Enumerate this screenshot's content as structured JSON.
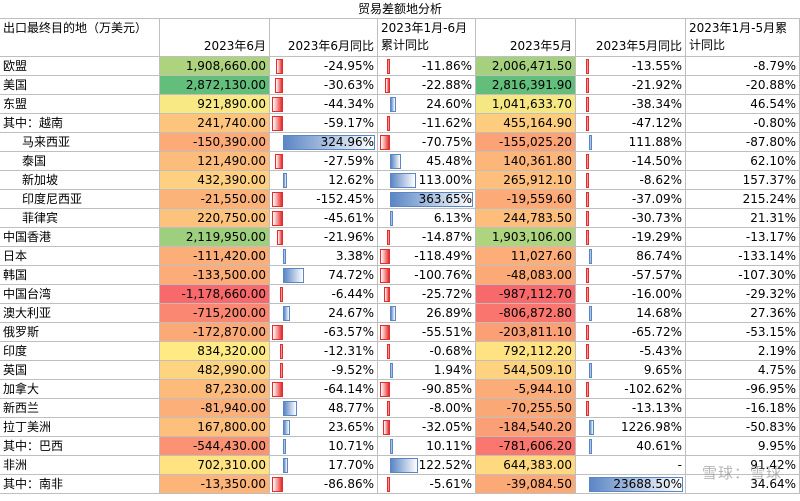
{
  "title": "贸易差额地分析",
  "headers": {
    "name": "出口最终目的地（万美元）",
    "jun": "2023年6月",
    "jun_yoy": "2023年6月同比",
    "h1_yoy": "2023年1月-6月累计同比",
    "may": "2023年5月",
    "may_yoy": "2023年5月同比",
    "ytd5_yoy": "2023年1月-5月累计同比"
  },
  "rows": [
    {
      "name": "欧盟",
      "indent": false,
      "jun": "1,908,660.00",
      "jun_n": 1908660,
      "jun_yoy": "-24.95%",
      "jun_yoy_n": -24.95,
      "h1_yoy": "-11.86%",
      "h1_yoy_n": -11.86,
      "may": "2,006,471.50",
      "may_n": 2006471.5,
      "may_yoy": "-13.55%",
      "may_yoy_n": -13.55,
      "ytd5_yoy": "-8.79%"
    },
    {
      "name": "美国",
      "indent": false,
      "jun": "2,872,130.00",
      "jun_n": 2872130,
      "jun_yoy": "-30.63%",
      "jun_yoy_n": -30.63,
      "h1_yoy": "-22.88%",
      "h1_yoy_n": -22.88,
      "may": "2,816,391.90",
      "may_n": 2816391.9,
      "may_yoy": "-21.92%",
      "may_yoy_n": -21.92,
      "ytd5_yoy": "-20.88%"
    },
    {
      "name": "东盟",
      "indent": false,
      "jun": "921,890.00",
      "jun_n": 921890,
      "jun_yoy": "-44.34%",
      "jun_yoy_n": -44.34,
      "h1_yoy": "24.60%",
      "h1_yoy_n": 24.6,
      "may": "1,041,633.70",
      "may_n": 1041633.7,
      "may_yoy": "-38.34%",
      "may_yoy_n": -38.34,
      "ytd5_yoy": "46.54%"
    },
    {
      "name": "其中：越南",
      "indent": false,
      "jun": "241,740.00",
      "jun_n": 241740,
      "jun_yoy": "-59.17%",
      "jun_yoy_n": -59.17,
      "h1_yoy": "-11.62%",
      "h1_yoy_n": -11.62,
      "may": "455,164.90",
      "may_n": 455164.9,
      "may_yoy": "-47.12%",
      "may_yoy_n": -47.12,
      "ytd5_yoy": "-0.80%"
    },
    {
      "name": "马来西亚",
      "indent": true,
      "jun": "-150,390.00",
      "jun_n": -150390,
      "jun_yoy": "324.96%",
      "jun_yoy_n": 324.96,
      "h1_yoy": "-70.75%",
      "h1_yoy_n": -70.75,
      "may": "-155,025.20",
      "may_n": -155025.2,
      "may_yoy": "111.88%",
      "may_yoy_n": 111.88,
      "ytd5_yoy": "-87.80%"
    },
    {
      "name": "泰国",
      "indent": true,
      "jun": "121,490.00",
      "jun_n": 121490,
      "jun_yoy": "-27.59%",
      "jun_yoy_n": -27.59,
      "h1_yoy": "45.48%",
      "h1_yoy_n": 45.48,
      "may": "140,361.80",
      "may_n": 140361.8,
      "may_yoy": "-14.50%",
      "may_yoy_n": -14.5,
      "ytd5_yoy": "62.10%"
    },
    {
      "name": "新加坡",
      "indent": true,
      "jun": "432,390.00",
      "jun_n": 432390,
      "jun_yoy": "12.62%",
      "jun_yoy_n": 12.62,
      "h1_yoy": "113.00%",
      "h1_yoy_n": 113.0,
      "may": "265,912.10",
      "may_n": 265912.1,
      "may_yoy": "-8.62%",
      "may_yoy_n": -8.62,
      "ytd5_yoy": "157.37%"
    },
    {
      "name": "印度尼西亚",
      "indent": true,
      "jun": "-21,550.00",
      "jun_n": -21550,
      "jun_yoy": "-152.45%",
      "jun_yoy_n": -152.45,
      "h1_yoy": "363.65%",
      "h1_yoy_n": 363.65,
      "may": "-19,559.60",
      "may_n": -19559.6,
      "may_yoy": "-37.09%",
      "may_yoy_n": -37.09,
      "ytd5_yoy": "215.24%"
    },
    {
      "name": "菲律宾",
      "indent": true,
      "jun": "220,750.00",
      "jun_n": 220750,
      "jun_yoy": "-45.61%",
      "jun_yoy_n": -45.61,
      "h1_yoy": "6.13%",
      "h1_yoy_n": 6.13,
      "may": "244,783.50",
      "may_n": 244783.5,
      "may_yoy": "-30.73%",
      "may_yoy_n": -30.73,
      "ytd5_yoy": "21.31%"
    },
    {
      "name": "中国香港",
      "indent": false,
      "jun": "2,119,950.00",
      "jun_n": 2119950,
      "jun_yoy": "-21.96%",
      "jun_yoy_n": -21.96,
      "h1_yoy": "-14.87%",
      "h1_yoy_n": -14.87,
      "may": "1,903,106.00",
      "may_n": 1903106,
      "may_yoy": "-19.29%",
      "may_yoy_n": -19.29,
      "ytd5_yoy": "-13.17%"
    },
    {
      "name": "日本",
      "indent": false,
      "jun": "-111,420.00",
      "jun_n": -111420,
      "jun_yoy": "3.38%",
      "jun_yoy_n": 3.38,
      "h1_yoy": "-118.49%",
      "h1_yoy_n": -118.49,
      "may": "11,027.60",
      "may_n": 11027.6,
      "may_yoy": "86.74%",
      "may_yoy_n": 86.74,
      "ytd5_yoy": "-133.14%"
    },
    {
      "name": "韩国",
      "indent": false,
      "jun": "-133,500.00",
      "jun_n": -133500,
      "jun_yoy": "74.72%",
      "jun_yoy_n": 74.72,
      "h1_yoy": "-100.76%",
      "h1_yoy_n": -100.76,
      "may": "-48,083.00",
      "may_n": -48083,
      "may_yoy": "-57.57%",
      "may_yoy_n": -57.57,
      "ytd5_yoy": "-107.30%"
    },
    {
      "name": "中国台湾",
      "indent": false,
      "jun": "-1,178,660.00",
      "jun_n": -1178660,
      "jun_yoy": "-6.44%",
      "jun_yoy_n": -6.44,
      "h1_yoy": "-25.72%",
      "h1_yoy_n": -25.72,
      "may": "-987,112.70",
      "may_n": -987112.7,
      "may_yoy": "-16.00%",
      "may_yoy_n": -16.0,
      "ytd5_yoy": "-29.32%"
    },
    {
      "name": "澳大利亚",
      "indent": false,
      "jun": "-715,200.00",
      "jun_n": -715200,
      "jun_yoy": "24.67%",
      "jun_yoy_n": 24.67,
      "h1_yoy": "26.89%",
      "h1_yoy_n": 26.89,
      "may": "-806,872.80",
      "may_n": -806872.8,
      "may_yoy": "14.68%",
      "may_yoy_n": 14.68,
      "ytd5_yoy": "27.36%"
    },
    {
      "name": "俄罗斯",
      "indent": false,
      "jun": "-172,870.00",
      "jun_n": -172870,
      "jun_yoy": "-63.57%",
      "jun_yoy_n": -63.57,
      "h1_yoy": "-55.51%",
      "h1_yoy_n": -55.51,
      "may": "-203,811.10",
      "may_n": -203811.1,
      "may_yoy": "-65.72%",
      "may_yoy_n": -65.72,
      "ytd5_yoy": "-53.15%"
    },
    {
      "name": "印度",
      "indent": false,
      "jun": "834,320.00",
      "jun_n": 834320,
      "jun_yoy": "-12.31%",
      "jun_yoy_n": -12.31,
      "h1_yoy": "-0.68%",
      "h1_yoy_n": -0.68,
      "may": "792,112.20",
      "may_n": 792112.2,
      "may_yoy": "-5.43%",
      "may_yoy_n": -5.43,
      "ytd5_yoy": "2.19%"
    },
    {
      "name": "英国",
      "indent": false,
      "jun": "482,990.00",
      "jun_n": 482990,
      "jun_yoy": "-9.52%",
      "jun_yoy_n": -9.52,
      "h1_yoy": "1.94%",
      "h1_yoy_n": 1.94,
      "may": "544,509.10",
      "may_n": 544509.1,
      "may_yoy": "9.65%",
      "may_yoy_n": 9.65,
      "ytd5_yoy": "4.75%"
    },
    {
      "name": "加拿大",
      "indent": false,
      "jun": "87,230.00",
      "jun_n": 87230,
      "jun_yoy": "-64.14%",
      "jun_yoy_n": -64.14,
      "h1_yoy": "-90.85%",
      "h1_yoy_n": -90.85,
      "may": "-5,944.10",
      "may_n": -5944.1,
      "may_yoy": "-102.62%",
      "may_yoy_n": -102.62,
      "ytd5_yoy": "-96.95%"
    },
    {
      "name": "新西兰",
      "indent": false,
      "jun": "-81,940.00",
      "jun_n": -81940,
      "jun_yoy": "48.77%",
      "jun_yoy_n": 48.77,
      "h1_yoy": "-8.00%",
      "h1_yoy_n": -8.0,
      "may": "-70,255.50",
      "may_n": -70255.5,
      "may_yoy": "-13.13%",
      "may_yoy_n": -13.13,
      "ytd5_yoy": "-16.18%"
    },
    {
      "name": "拉丁美洲",
      "indent": false,
      "jun": "167,800.00",
      "jun_n": 167800,
      "jun_yoy": "23.65%",
      "jun_yoy_n": 23.65,
      "h1_yoy": "-32.05%",
      "h1_yoy_n": -32.05,
      "may": "-184,540.20",
      "may_n": -184540.2,
      "may_yoy": "1226.98%",
      "may_yoy_n": 1226.98,
      "ytd5_yoy": "-50.83%"
    },
    {
      "name": "其中：巴西",
      "indent": false,
      "jun": "-544,430.00",
      "jun_n": -544430,
      "jun_yoy": "10.71%",
      "jun_yoy_n": 10.71,
      "h1_yoy": "10.11%",
      "h1_yoy_n": 10.11,
      "may": "-781,606.20",
      "may_n": -781606.2,
      "may_yoy": "40.61%",
      "may_yoy_n": 40.61,
      "ytd5_yoy": "9.95%"
    },
    {
      "name": "非洲",
      "indent": false,
      "jun": "702,310.00",
      "jun_n": 702310,
      "jun_yoy": "17.70%",
      "jun_yoy_n": 17.7,
      "h1_yoy": "122.52%",
      "h1_yoy_n": 122.52,
      "may": "644,383.00",
      "may_n": 644383,
      "may_yoy": "-",
      "may_yoy_n": 0,
      "ytd5_yoy": "91.42%"
    },
    {
      "name": "其中：南非",
      "indent": false,
      "jun": "-13,350.00",
      "jun_n": -13350,
      "jun_yoy": "-86.86%",
      "jun_yoy_n": -86.86,
      "h1_yoy": "-5.61%",
      "h1_yoy_n": -5.61,
      "may": "-39,084.50",
      "may_n": -39084.5,
      "may_yoy": "23688.50%",
      "may_yoy_n": 23688.5,
      "ytd5_yoy": "34.64%"
    }
  ],
  "colors": {
    "pos_bar": "#5b86c5",
    "neg_bar": "#e52b2b",
    "grid": "#bfbfbf"
  },
  "watermark": "雪球：雪球"
}
